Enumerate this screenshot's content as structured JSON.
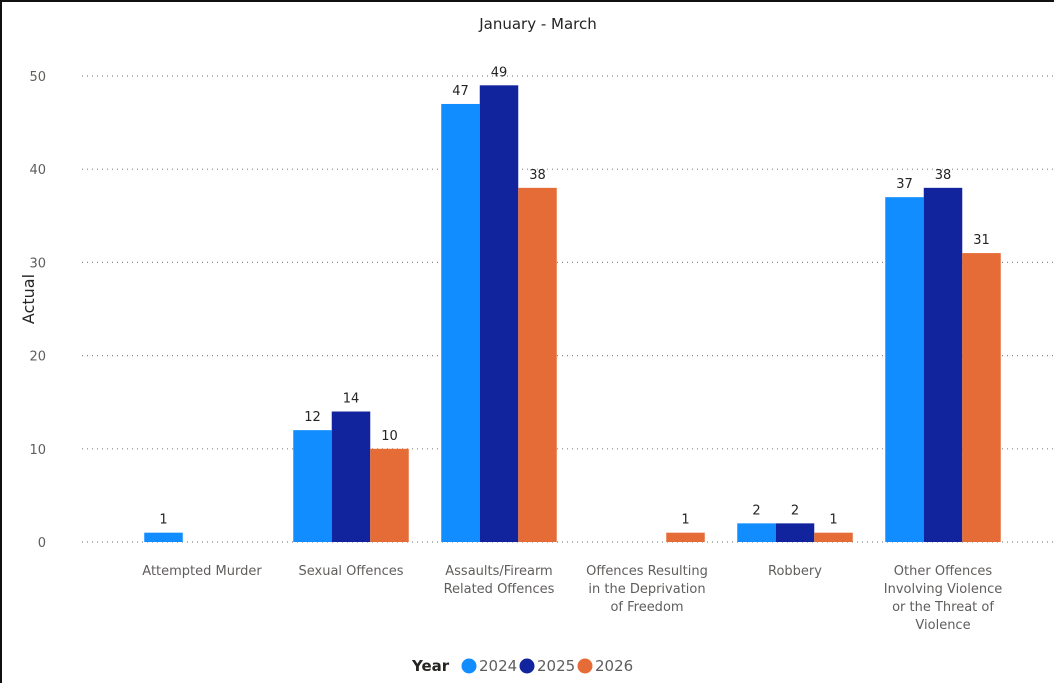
{
  "chart_data": {
    "type": "bar",
    "title": "January - March",
    "ylabel": "Actual",
    "xlabel": "",
    "ylim": [
      0,
      50
    ],
    "yticks": [
      0,
      10,
      20,
      30,
      40,
      50
    ],
    "grid": true,
    "legend": {
      "title": "Year",
      "position": "bottom-center"
    },
    "categories": [
      [
        "Attempted Murder"
      ],
      [
        "Sexual Offences"
      ],
      [
        "Assaults/Firearm",
        "Related Offences"
      ],
      [
        "Offences Resulting",
        "in the Deprivation",
        "of Freedom"
      ],
      [
        "Robbery"
      ],
      [
        "Other Offences",
        "Involving Violence",
        "or the Threat of",
        "Violence"
      ]
    ],
    "series": [
      {
        "name": "2024",
        "color": "#118dff",
        "values": [
          1,
          12,
          47,
          null,
          2,
          37
        ]
      },
      {
        "name": "2025",
        "color": "#12239e",
        "values": [
          null,
          14,
          49,
          null,
          2,
          38
        ]
      },
      {
        "name": "2026",
        "color": "#e66c37",
        "values": [
          null,
          10,
          38,
          1,
          1,
          31
        ]
      }
    ]
  }
}
